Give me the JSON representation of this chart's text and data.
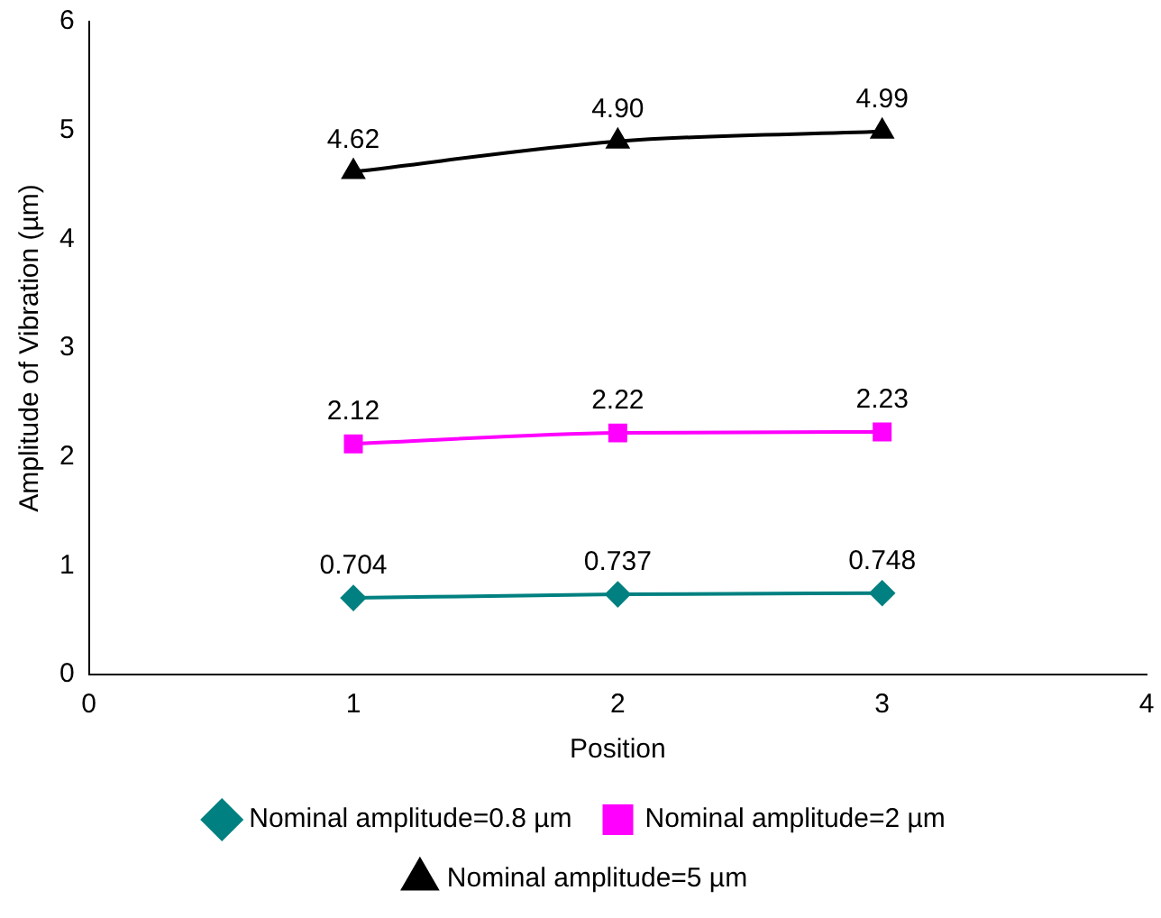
{
  "chart_data": {
    "type": "line",
    "xlabel": "Position",
    "ylabel": "Amplitude of Vibration (µm)",
    "x": [
      1,
      2,
      3
    ],
    "series": [
      {
        "name": "Nominal amplitude=0.8 µm",
        "color": "#008080",
        "marker": "diamond",
        "values": [
          0.704,
          0.737,
          0.748
        ],
        "value_labels": [
          "0.704",
          "0.737",
          "0.748"
        ]
      },
      {
        "name": "Nominal amplitude=2 µm",
        "color": "#ff00ff",
        "marker": "square",
        "values": [
          2.12,
          2.22,
          2.23
        ],
        "value_labels": [
          "2.12",
          "2.22",
          "2.23"
        ]
      },
      {
        "name": "Nominal amplitude=5 µm",
        "color": "#000000",
        "marker": "triangle",
        "values": [
          4.62,
          4.9,
          4.99
        ],
        "value_labels": [
          "4.62",
          "4.90",
          "4.99"
        ]
      }
    ],
    "xlim": [
      0,
      4
    ],
    "xticks": [
      0,
      1,
      2,
      3,
      4
    ],
    "ylim": [
      0,
      6
    ],
    "yticks": [
      0,
      1,
      2,
      3,
      4,
      5,
      6
    ],
    "grid": false,
    "legend": "bottom",
    "line_style": "solid"
  }
}
